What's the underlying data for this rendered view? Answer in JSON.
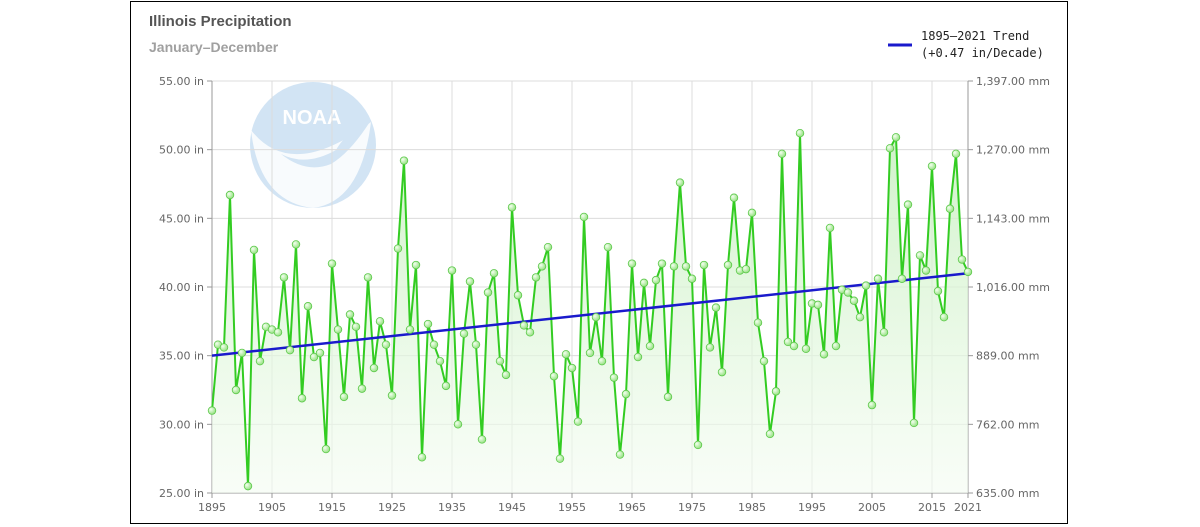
{
  "chart_data": {
    "type": "line",
    "title": "Illinois Precipitation",
    "subtitle": "January–December",
    "x": [
      1895,
      1896,
      1897,
      1898,
      1899,
      1900,
      1901,
      1902,
      1903,
      1904,
      1905,
      1906,
      1907,
      1908,
      1909,
      1910,
      1911,
      1912,
      1913,
      1914,
      1915,
      1916,
      1917,
      1918,
      1919,
      1920,
      1921,
      1922,
      1923,
      1924,
      1925,
      1926,
      1927,
      1928,
      1929,
      1930,
      1931,
      1932,
      1933,
      1934,
      1935,
      1936,
      1937,
      1938,
      1939,
      1940,
      1941,
      1942,
      1943,
      1944,
      1945,
      1946,
      1947,
      1948,
      1949,
      1950,
      1951,
      1952,
      1953,
      1954,
      1955,
      1956,
      1957,
      1958,
      1959,
      1960,
      1961,
      1962,
      1963,
      1964,
      1965,
      1966,
      1967,
      1968,
      1969,
      1970,
      1971,
      1972,
      1973,
      1974,
      1975,
      1976,
      1977,
      1978,
      1979,
      1980,
      1981,
      1982,
      1983,
      1984,
      1985,
      1986,
      1987,
      1988,
      1989,
      1990,
      1991,
      1992,
      1993,
      1994,
      1995,
      1996,
      1997,
      1998,
      1999,
      2000,
      2001,
      2002,
      2003,
      2004,
      2005,
      2006,
      2007,
      2008,
      2009,
      2010,
      2011,
      2012,
      2013,
      2014,
      2015,
      2016,
      2017,
      2018,
      2019,
      2020,
      2021
    ],
    "series": [
      {
        "name": "Illinois Precipitation",
        "color": "#33cc22",
        "values": [
          31.0,
          35.8,
          35.6,
          46.7,
          32.5,
          35.2,
          25.5,
          42.7,
          34.6,
          37.1,
          36.9,
          36.7,
          40.7,
          35.4,
          43.1,
          31.9,
          38.6,
          34.9,
          35.2,
          28.2,
          41.7,
          36.9,
          32.0,
          38.0,
          37.1,
          32.6,
          40.7,
          34.1,
          37.5,
          35.8,
          32.1,
          42.8,
          49.2,
          36.9,
          41.6,
          27.6,
          37.3,
          35.8,
          34.6,
          32.8,
          41.2,
          30.0,
          36.6,
          40.4,
          35.8,
          28.9,
          39.6,
          41.0,
          34.6,
          33.6,
          45.8,
          39.4,
          37.2,
          36.7,
          40.7,
          41.5,
          42.9,
          33.5,
          27.5,
          35.1,
          34.1,
          30.2,
          45.1,
          35.2,
          37.8,
          34.6,
          42.9,
          33.4,
          27.8,
          32.2,
          41.7,
          34.9,
          40.3,
          35.7,
          40.5,
          41.7,
          32.0,
          41.5,
          47.6,
          41.5,
          40.6,
          28.5,
          41.6,
          35.6,
          38.5,
          33.8,
          41.6,
          46.5,
          41.2,
          41.3,
          45.4,
          37.4,
          34.6,
          29.3,
          32.4,
          49.7,
          36.0,
          35.7,
          51.2,
          35.5,
          38.8,
          38.7,
          35.1,
          44.3,
          35.7,
          39.8,
          39.6,
          39.0,
          37.8,
          40.1,
          31.4,
          40.6,
          36.7,
          50.1,
          50.9,
          40.6,
          46.0,
          30.1,
          42.3,
          41.2,
          48.8,
          39.7,
          37.8,
          45.7,
          49.7,
          42.0,
          41.1
        ]
      }
    ],
    "trend": {
      "label_line1": "1895–2021 Trend",
      "label_line2": "(+0.47 in/Decade)",
      "color": "#1a1acc",
      "start": [
        1895,
        35.0
      ],
      "end": [
        2021,
        41.0
      ]
    },
    "ylim": [
      25,
      55
    ],
    "xlim": [
      1895,
      2021
    ],
    "y_ticks_left": [
      "25.00 in",
      "30.00 in",
      "35.00 in",
      "40.00 in",
      "45.00 in",
      "50.00 in",
      "55.00 in"
    ],
    "y_ticks_right": [
      "635.00 mm",
      "762.00 mm",
      "889.00 mm",
      "1,016.00 mm",
      "1,143.00 mm",
      "1,270.00 mm",
      "1,397.00 mm"
    ],
    "x_ticks": [
      "1895",
      "1905",
      "1915",
      "1925",
      "1935",
      "1945",
      "1955",
      "1965",
      "1975",
      "1985",
      "1995",
      "2005",
      "2015",
      "2021"
    ],
    "grid": true,
    "legend": "top-right",
    "watermark_text": "NOAA"
  }
}
